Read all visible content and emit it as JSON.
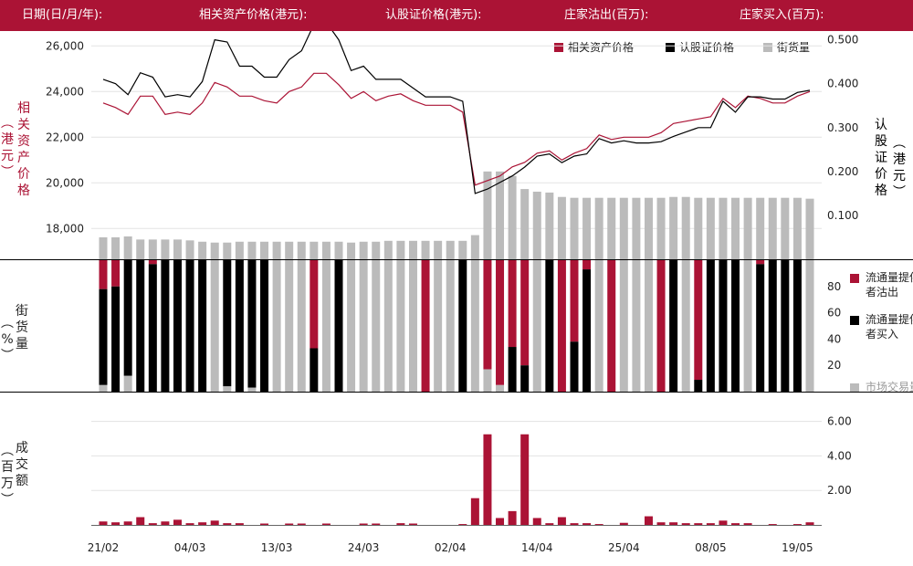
{
  "header": {
    "date_label": "日期(日/月/年):",
    "underlying_label": "相关资产价格(港元):",
    "warrant_label": "认股证价格(港元):",
    "sell_label": "庄家沽出(百万):",
    "buy_label": "庄家买入(百万):"
  },
  "legend_top": {
    "underlying": "相关资产价格",
    "warrant": "认股证价格",
    "outstanding": "街货量"
  },
  "panel_labels": {
    "left_price": "相关资产价格",
    "left_price_unit": "港元",
    "right_price": "认股证价格",
    "right_price_unit": "港元",
    "outstanding": "街货量",
    "outstanding_unit": "%",
    "turnover": "成交额",
    "turnover_unit": "百万"
  },
  "legend_right": {
    "lp_sell": "流通量提供者沽出",
    "lp_buy": "流通量提供者买入",
    "market": "市场交易量"
  },
  "colors": {
    "red": "#ab1335",
    "black": "#000000",
    "gray": "#bbbbbb",
    "grid": "#e3e3e3"
  },
  "chart_data": {
    "type": "line",
    "x_ticks": [
      "21/02",
      "04/03",
      "13/03",
      "24/03",
      "02/04",
      "14/04",
      "25/04",
      "08/05",
      "19/05"
    ],
    "price_panel": {
      "left_axis": {
        "ticks": [
          "26,000",
          "24,000",
          "22,000",
          "20,000",
          "18,000"
        ],
        "tick_values": [
          26000,
          24000,
          22000,
          20000,
          18000
        ],
        "ylim": [
          16650,
          26650
        ]
      },
      "right_axis": {
        "ticks": [
          "0.500",
          "0.400",
          "0.300",
          "0.200",
          "0.100"
        ],
        "tick_values": [
          0.5,
          0.4,
          0.3,
          0.2,
          0.1
        ],
        "ylim": [
          0,
          0.52
        ]
      },
      "series": [
        {
          "name": "相关资产价格",
          "axis": "left",
          "color": "#ab1335",
          "values": [
            23500,
            23300,
            23000,
            23800,
            23800,
            23000,
            23100,
            23000,
            23500,
            24400,
            24200,
            23800,
            23800,
            23600,
            23500,
            24000,
            24200,
            24800,
            24800,
            24300,
            23700,
            24000,
            23600,
            23800,
            23900,
            23600,
            23400,
            23400,
            23400,
            23100,
            19900,
            20100,
            20300,
            20700,
            20900,
            21300,
            21400,
            21000,
            21300,
            21500,
            22100,
            21900,
            22000,
            22000,
            22000,
            22200,
            22600,
            22700,
            22800,
            22900,
            23700,
            23300,
            23800,
            23700,
            23500,
            23500,
            23800,
            24000
          ]
        },
        {
          "name": "认股证价格",
          "axis": "right",
          "color": "#000000",
          "values": [
            0.41,
            0.4,
            0.375,
            0.425,
            0.415,
            0.37,
            0.375,
            0.37,
            0.405,
            0.5,
            0.495,
            0.44,
            0.44,
            0.415,
            0.415,
            0.455,
            0.475,
            0.535,
            0.54,
            0.5,
            0.43,
            0.44,
            0.41,
            0.41,
            0.41,
            0.39,
            0.37,
            0.37,
            0.37,
            0.36,
            0.15,
            0.16,
            0.175,
            0.19,
            0.21,
            0.235,
            0.24,
            0.22,
            0.235,
            0.24,
            0.275,
            0.265,
            0.27,
            0.265,
            0.265,
            0.268,
            0.28,
            0.29,
            0.3,
            0.3,
            0.36,
            0.335,
            0.37,
            0.37,
            0.365,
            0.365,
            0.38,
            0.385
          ]
        },
        {
          "name": "街货量",
          "axis": "right",
          "color": "#bbbbbb",
          "type": "bar",
          "values": [
            0.05,
            0.05,
            0.052,
            0.045,
            0.045,
            0.045,
            0.045,
            0.043,
            0.04,
            0.038,
            0.038,
            0.04,
            0.04,
            0.04,
            0.04,
            0.04,
            0.04,
            0.04,
            0.04,
            0.04,
            0.038,
            0.04,
            0.04,
            0.042,
            0.042,
            0.042,
            0.042,
            0.042,
            0.042,
            0.042,
            0.055,
            0.2,
            0.2,
            0.19,
            0.16,
            0.154,
            0.152,
            0.142,
            0.14,
            0.14,
            0.14,
            0.14,
            0.14,
            0.14,
            0.14,
            0.14,
            0.142,
            0.142,
            0.14,
            0.14,
            0.14,
            0.14,
            0.14,
            0.14,
            0.14,
            0.14,
            0.14,
            0.138
          ]
        }
      ]
    },
    "share_panel": {
      "type": "stacked-bar",
      "y_ticks": [
        "80",
        "60",
        "40",
        "20"
      ],
      "tick_values": [
        80,
        60,
        40,
        20
      ],
      "ylim": [
        0,
        100
      ],
      "series": [
        {
          "name": "流通量提供者沽出",
          "color": "#ab1335",
          "values": [
            22,
            20,
            null,
            null,
            null,
            3,
            null,
            null,
            null,
            null,
            null,
            null,
            null,
            null,
            null,
            null,
            null,
            null,
            null,
            null,
            null,
            null,
            null,
            null,
            null,
            null,
            null,
            null,
            null,
            null,
            null,
            null,
            null,
            null,
            null,
            null,
            null,
            null,
            null,
            null,
            null,
            null,
            null,
            null,
            null,
            null,
            null,
            null,
            null,
            null,
            null,
            null,
            null,
            null,
            null,
            null,
            null,
            null
          ]
        },
        {
          "name": "流通量提供者买入",
          "color": "#000000",
          "values": [
            null,
            null,
            null,
            null,
            null,
            null,
            null,
            null,
            null,
            null,
            null,
            null,
            null,
            null,
            null,
            null,
            null,
            null,
            null,
            null,
            null,
            null,
            null,
            null,
            null,
            null,
            null,
            null,
            null,
            null,
            null,
            null,
            null,
            null,
            null,
            null,
            null,
            null,
            null,
            null,
            null,
            null,
            null,
            null,
            null,
            null,
            null,
            null,
            null,
            null,
            null,
            null,
            null,
            null,
            null,
            null,
            null,
            null
          ]
        },
        {
          "name": "市场交易量",
          "color": "#bbbbbb",
          "values": [
            null,
            null,
            null,
            null,
            null,
            null,
            null,
            null,
            null,
            null,
            null,
            null,
            null,
            null,
            null,
            null,
            null,
            null,
            null,
            null,
            null,
            null,
            null,
            null,
            null,
            null,
            null,
            null,
            null,
            null,
            null,
            null,
            null,
            null,
            null,
            null,
            null,
            null,
            null,
            null,
            null,
            null,
            null,
            null,
            null,
            null,
            null,
            null,
            null,
            null,
            null,
            null,
            null,
            null,
            null,
            null,
            null,
            null
          ]
        }
      ],
      "stacks": [
        [
          22,
          73,
          5
        ],
        [
          20,
          80,
          0
        ],
        [
          0,
          88,
          12
        ],
        [
          0,
          100,
          0
        ],
        [
          3,
          97,
          0
        ],
        [
          0,
          100,
          0
        ],
        [
          0,
          100,
          0
        ],
        [
          0,
          100,
          0
        ],
        [
          0,
          100,
          0
        ],
        [
          0,
          0,
          100
        ],
        [
          0,
          96,
          4
        ],
        [
          0,
          100,
          0
        ],
        [
          0,
          97,
          3
        ],
        [
          0,
          100,
          0
        ],
        [
          0,
          0,
          100
        ],
        [
          0,
          0,
          100
        ],
        [
          0,
          0,
          100
        ],
        [
          67,
          33,
          0
        ],
        [
          0,
          0,
          100
        ],
        [
          0,
          100,
          0
        ],
        [
          0,
          0,
          100
        ],
        [
          0,
          0,
          100
        ],
        [
          0,
          0,
          100
        ],
        [
          0,
          0,
          100
        ],
        [
          0,
          0,
          100
        ],
        [
          0,
          0,
          100
        ],
        [
          100,
          0,
          0
        ],
        [
          0,
          0,
          100
        ],
        [
          0,
          0,
          100
        ],
        [
          0,
          100,
          0
        ],
        [
          0,
          0,
          100
        ],
        [
          83,
          0,
          17
        ],
        [
          95,
          0,
          5
        ],
        [
          66,
          34,
          0
        ],
        [
          80,
          20,
          0
        ],
        [
          0,
          0,
          100
        ],
        [
          0,
          100,
          0
        ],
        [
          100,
          0,
          0
        ],
        [
          62,
          38,
          0
        ],
        [
          7,
          93,
          0
        ],
        [
          0,
          0,
          100
        ],
        [
          100,
          0,
          0
        ],
        [
          0,
          0,
          100
        ],
        [
          0,
          0,
          100
        ],
        [
          0,
          0,
          100
        ],
        [
          100,
          0,
          0
        ],
        [
          0,
          100,
          0
        ],
        [
          0,
          0,
          100
        ],
        [
          91,
          9,
          0
        ],
        [
          0,
          100,
          0
        ],
        [
          0,
          100,
          0
        ],
        [
          0,
          100,
          0
        ],
        [
          0,
          0,
          100
        ],
        [
          3,
          97,
          0
        ],
        [
          0,
          100,
          0
        ],
        [
          0,
          100,
          0
        ],
        [
          0,
          100,
          0
        ],
        [
          0,
          0,
          100
        ]
      ]
    },
    "turnover_panel": {
      "type": "bar",
      "y_ticks": [
        "6.00",
        "4.00",
        "2.00"
      ],
      "tick_values": [
        6,
        4,
        2
      ],
      "ylim": [
        0,
        6.4
      ],
      "series": [
        {
          "name": "成交额",
          "color": "#ab1335",
          "values": [
            0.2,
            0.15,
            0.2,
            0.45,
            0.1,
            0.2,
            0.3,
            0.1,
            0.15,
            0.25,
            0.1,
            0.1,
            0,
            0.08,
            0,
            0.08,
            0.08,
            0,
            0.08,
            0,
            0,
            0.08,
            0.08,
            0,
            0.1,
            0.08,
            0,
            0,
            0,
            0.05,
            1.55,
            5.25,
            0.4,
            0.8,
            5.25,
            0.4,
            0.1,
            0.45,
            0.1,
            0.1,
            0.05,
            0,
            0.12,
            0,
            0.5,
            0.15,
            0.15,
            0.1,
            0.1,
            0.1,
            0.25,
            0.1,
            0.1,
            0,
            0.05,
            0,
            0.05,
            0.15
          ]
        }
      ]
    }
  }
}
